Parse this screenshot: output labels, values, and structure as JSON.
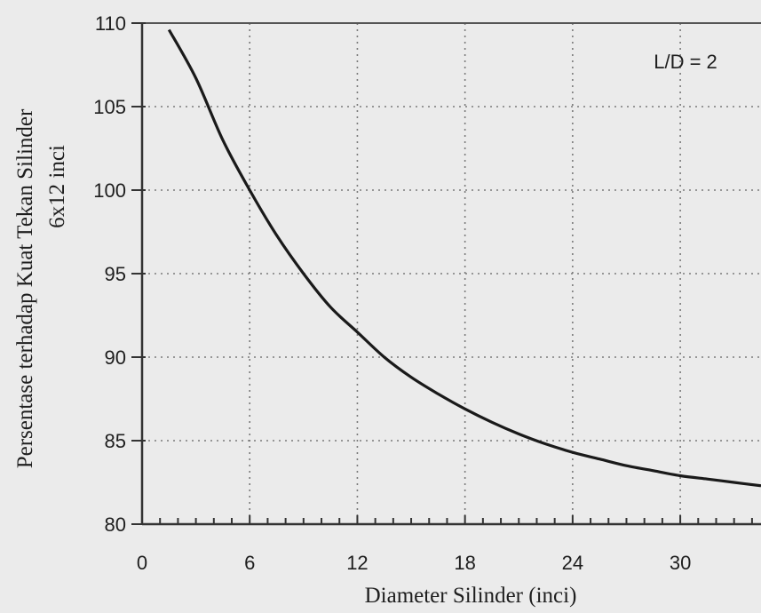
{
  "chart_data": {
    "type": "line",
    "title": "",
    "annotation": "L/D = 2",
    "xlabel": "Diameter Silinder (inci)",
    "ylabel_line1": "Persentase terhadap Kuat Tekan Silinder",
    "ylabel_line2": "6x12 inci",
    "xlim": [
      0,
      34.5
    ],
    "ylim": [
      80,
      110
    ],
    "x_ticks": [
      0,
      6,
      12,
      18,
      24,
      30
    ],
    "y_ticks": [
      80,
      85,
      90,
      95,
      100,
      105,
      110
    ],
    "x_minor_step": 1,
    "grid": true,
    "colors": {
      "background": "#ebebeb",
      "line": "#1a1a1a",
      "grid": "#7a7a7a"
    },
    "series": [
      {
        "x": [
          1.5,
          3,
          4.5,
          6,
          7.5,
          9,
          10.5,
          12,
          13.5,
          15,
          16.5,
          18,
          19.5,
          21,
          22.5,
          24,
          25.5,
          27,
          28.5,
          30,
          31.5,
          33,
          34.5
        ],
        "values": [
          109.6,
          106.7,
          103.0,
          100.0,
          97.3,
          95.0,
          93.0,
          91.5,
          90.0,
          88.8,
          87.8,
          86.9,
          86.1,
          85.4,
          84.8,
          84.3,
          83.9,
          83.5,
          83.2,
          82.9,
          82.7,
          82.5,
          82.3
        ]
      }
    ]
  }
}
